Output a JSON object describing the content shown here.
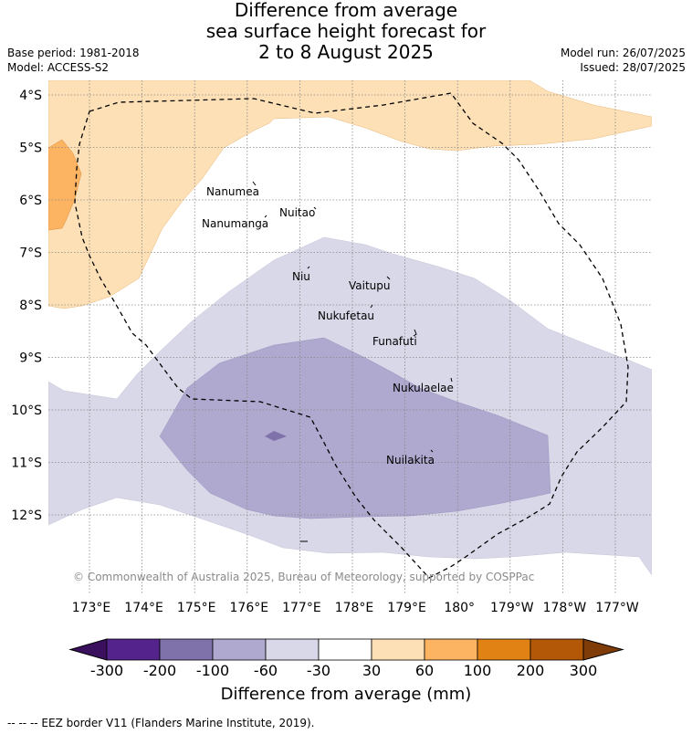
{
  "title": {
    "line1": "Difference from average",
    "line2": "sea surface height forecast for",
    "line3": "2 to 8 August 2025"
  },
  "meta": {
    "base_period": "Base period: 1981-2018",
    "model": "Model: ACCESS-S2",
    "model_run": "Model run: 26/07/2025",
    "issued": "Issued: 28/07/2025"
  },
  "copyright": "© Commonwealth of Australia 2025, Bureau of Meteorology, supported by COSPPac",
  "lat_labels": [
    "4°S",
    "5°S",
    "6°S",
    "7°S",
    "8°S",
    "9°S",
    "10°S",
    "11°S",
    "12°S"
  ],
  "lon_labels": [
    "173°E",
    "174°E",
    "175°E",
    "176°E",
    "177°E",
    "178°E",
    "179°E",
    "180°",
    "179°W",
    "178°W",
    "177°W"
  ],
  "islands": [
    {
      "name": "Nanumea"
    },
    {
      "name": "Nuitao"
    },
    {
      "name": "Nanumanga"
    },
    {
      "name": "Niu"
    },
    {
      "name": "Vaitupu"
    },
    {
      "name": "Nukufetau"
    },
    {
      "name": "Funafuti"
    },
    {
      "name": "Nukulaelae"
    },
    {
      "name": "Nuilakita"
    }
  ],
  "colorbar": {
    "ticks": [
      "-300",
      "-200",
      "-100",
      "-60",
      "-30",
      "30",
      "60",
      "100",
      "200",
      "300"
    ],
    "colors": {
      "below_min": "#3a0f5e",
      "c1": "#54238b",
      "c2": "#7f72ab",
      "c3": "#afa8cf",
      "c4": "#d8d8e8",
      "c5": "#ffffff",
      "c6": "#fde0b6",
      "c7": "#fdb462",
      "c8": "#e08214",
      "c9": "#b35806",
      "above_max": "#7f3b08"
    },
    "label": "Difference from average (mm)"
  },
  "footer": "--  --  -- EEZ border V11 (Flanders Marine Institute, 2019)."
}
